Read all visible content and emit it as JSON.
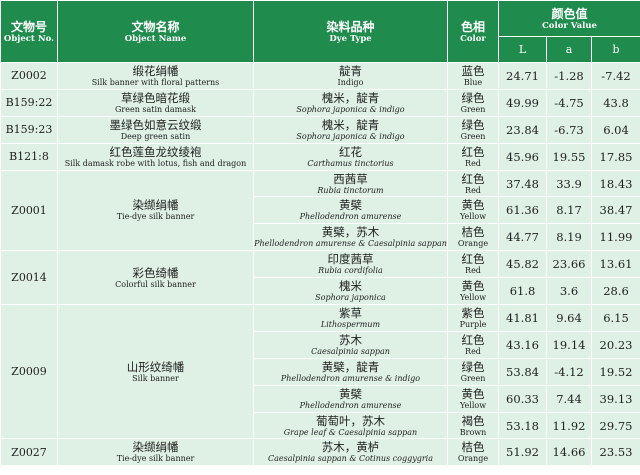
{
  "header": {
    "object_no_zh": "文物号",
    "object_no_en": "Object No.",
    "object_name_zh": "文物名称",
    "object_name_en": "Object Name",
    "dye_type_zh": "染料品种",
    "dye_type_en": "Dye Type",
    "color_zh": "色相",
    "color_en": "Color",
    "color_value_zh": "颜色值",
    "color_value_en": "Color Value",
    "l": "L",
    "a": "a",
    "b": "b"
  },
  "objects": [
    {
      "id": "Z0002",
      "name_zh": "缎花绢幡",
      "name_en": "Silk banner with floral patterns",
      "dyes": [
        {
          "zh": "靛青",
          "en": "Indigo",
          "en_italic": false,
          "color_zh": "蓝色",
          "color_en": "Blue",
          "L": "24.71",
          "a": "-1.28",
          "b": "-7.42"
        }
      ]
    },
    {
      "id": "B159:22",
      "name_zh": "草绿色暗花缎",
      "name_en": "Green satin damask",
      "dyes": [
        {
          "zh": "槐米，靛青",
          "en": "Sophora japonica & indigo",
          "en_italic": true,
          "color_zh": "绿色",
          "color_en": "Green",
          "L": "49.99",
          "a": "-4.75",
          "b": "43.8"
        }
      ]
    },
    {
      "id": "B159:23",
      "name_zh": "墨绿色如意云纹缎",
      "name_en": "Deep green satin",
      "dyes": [
        {
          "zh": "槐米，靛青",
          "en": "Sophora japonica & indigo",
          "en_italic": true,
          "color_zh": "绿色",
          "color_en": "Green",
          "L": "23.84",
          "a": "-6.73",
          "b": "6.04"
        }
      ]
    },
    {
      "id": "B121:8",
      "name_zh": "红色莲鱼龙纹绫袍",
      "name_en": "Silk damask robe with lotus, fish and dragon",
      "dyes": [
        {
          "zh": "红花",
          "en": "Carthamus tinctorius",
          "en_italic": true,
          "color_zh": "红色",
          "color_en": "Red",
          "L": "45.96",
          "a": "19.55",
          "b": "17.85"
        }
      ]
    },
    {
      "id": "Z0001",
      "name_zh": "染缬绢幡",
      "name_en": "Tie-dye silk banner",
      "dyes": [
        {
          "zh": "西茜草",
          "en": "Rubia tinctorum",
          "en_italic": true,
          "color_zh": "红色",
          "color_en": "Red",
          "L": "37.48",
          "a": "33.9",
          "b": "18.43"
        },
        {
          "zh": "黄檗",
          "en": "Phellodendron amurense",
          "en_italic": true,
          "color_zh": "黄色",
          "color_en": "Yellow",
          "L": "61.36",
          "a": "8.17",
          "b": "38.47"
        },
        {
          "zh": "黄檗，苏木",
          "en": "Phellodendron amurense & Caesalpinia sappan",
          "en_italic": true,
          "color_zh": "桔色",
          "color_en": "Orange",
          "L": "44.77",
          "a": "8.19",
          "b": "11.99"
        }
      ]
    },
    {
      "id": "Z0014",
      "name_zh": "彩色绮幡",
      "name_en": "Colorful silk banner",
      "dyes": [
        {
          "zh": "印度茜草",
          "en": "Rubia cordifolia",
          "en_italic": true,
          "color_zh": "红色",
          "color_en": "Red",
          "L": "45.82",
          "a": "23.66",
          "b": "13.61"
        },
        {
          "zh": "槐米",
          "en": "Sophora japonica",
          "en_italic": true,
          "color_zh": "黄色",
          "color_en": "Yellow",
          "L": "61.8",
          "a": "3.6",
          "b": "28.6"
        }
      ]
    },
    {
      "id": "Z0009",
      "name_zh": "山形纹绮幡",
      "name_en": "Silk banner",
      "dyes": [
        {
          "zh": "紫草",
          "en": "Lithospermum",
          "en_italic": true,
          "color_zh": "紫色",
          "color_en": "Purple",
          "L": "41.81",
          "a": "9.64",
          "b": "6.15"
        },
        {
          "zh": "苏木",
          "en": "Caesalpinia sappan",
          "en_italic": true,
          "color_zh": "红色",
          "color_en": "Red",
          "L": "43.16",
          "a": "19.14",
          "b": "20.23"
        },
        {
          "zh": "黄檗，靛青",
          "en": "Phellodendron amurense & indigo",
          "en_italic": true,
          "color_zh": "绿色",
          "color_en": "Green",
          "L": "53.84",
          "a": "-4.12",
          "b": "19.52"
        },
        {
          "zh": "黄檗",
          "en": "Phellodendron amurense",
          "en_italic": true,
          "color_zh": "黄色",
          "color_en": "Yellow",
          "L": "60.33",
          "a": "7.44",
          "b": "39.13"
        },
        {
          "zh": "葡萄叶，苏木",
          "en": "Grape leaf & Caesalpinia sappan",
          "en_italic": true,
          "color_zh": "褐色",
          "color_en": "Brown",
          "L": "53.18",
          "a": "11.92",
          "b": "29.75"
        }
      ]
    },
    {
      "id": "Z0027",
      "name_zh": "染缬绢幡",
      "name_en": "Tie-dye silk banner",
      "dyes": [
        {
          "zh": "苏木，黄栌",
          "en": "Caesalpinia sappan & Cotinus coggygria",
          "en_italic": true,
          "color_zh": "桔色",
          "color_en": "Orange",
          "L": "51.92",
          "a": "14.66",
          "b": "23.53"
        }
      ]
    }
  ],
  "colors": {
    "header_bg": "#1f8c4e",
    "row_bg": "#dff0e5",
    "grid": "#ffffff"
  }
}
